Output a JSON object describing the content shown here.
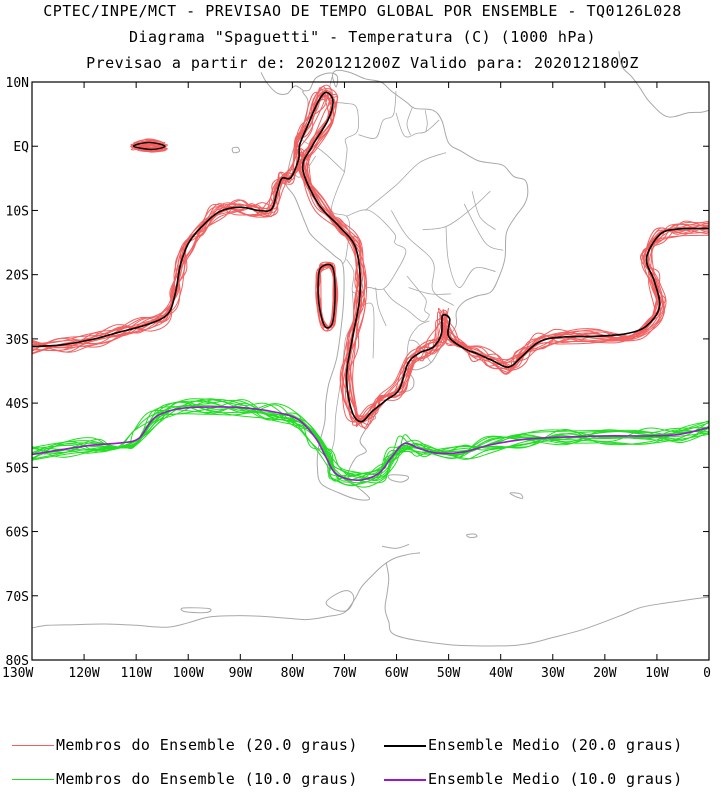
{
  "header": {
    "line1": "CPTEC/INPE/MCT - PREVISAO DE TEMPO GLOBAL POR ENSEMBLE - TQ0126L028",
    "line2": "Diagrama \"Spaguetti\" - Temperatura (C) (1000 hPa)",
    "line3": "Previsao a partir de: 2020121200Z  Valido para: 2020121800Z"
  },
  "map": {
    "lon_range": [
      -130,
      0
    ],
    "lat_range": [
      -80,
      10
    ],
    "lat_ticks": [
      "10N",
      "EQ",
      "10S",
      "20S",
      "30S",
      "40S",
      "50S",
      "60S",
      "70S",
      "80S"
    ],
    "lon_ticks": [
      "130W",
      "120W",
      "110W",
      "100W",
      "90W",
      "80W",
      "70W",
      "60W",
      "50W",
      "40W",
      "30W",
      "20W",
      "10W",
      "0"
    ],
    "colors": {
      "coast": "#a8a8a8",
      "member20": "#f26060",
      "mean20": "#000000",
      "member10": "#22dd22",
      "mean10": "#9a16d0"
    }
  },
  "legend": {
    "member20": "Membros do Ensemble (20.0 graus)",
    "mean20": "Ensemble Medio (20.0 graus)",
    "member10": "Membros do Ensemble (10.0 graus)",
    "mean10": "Ensemble Medio (10.0 graus)"
  }
}
